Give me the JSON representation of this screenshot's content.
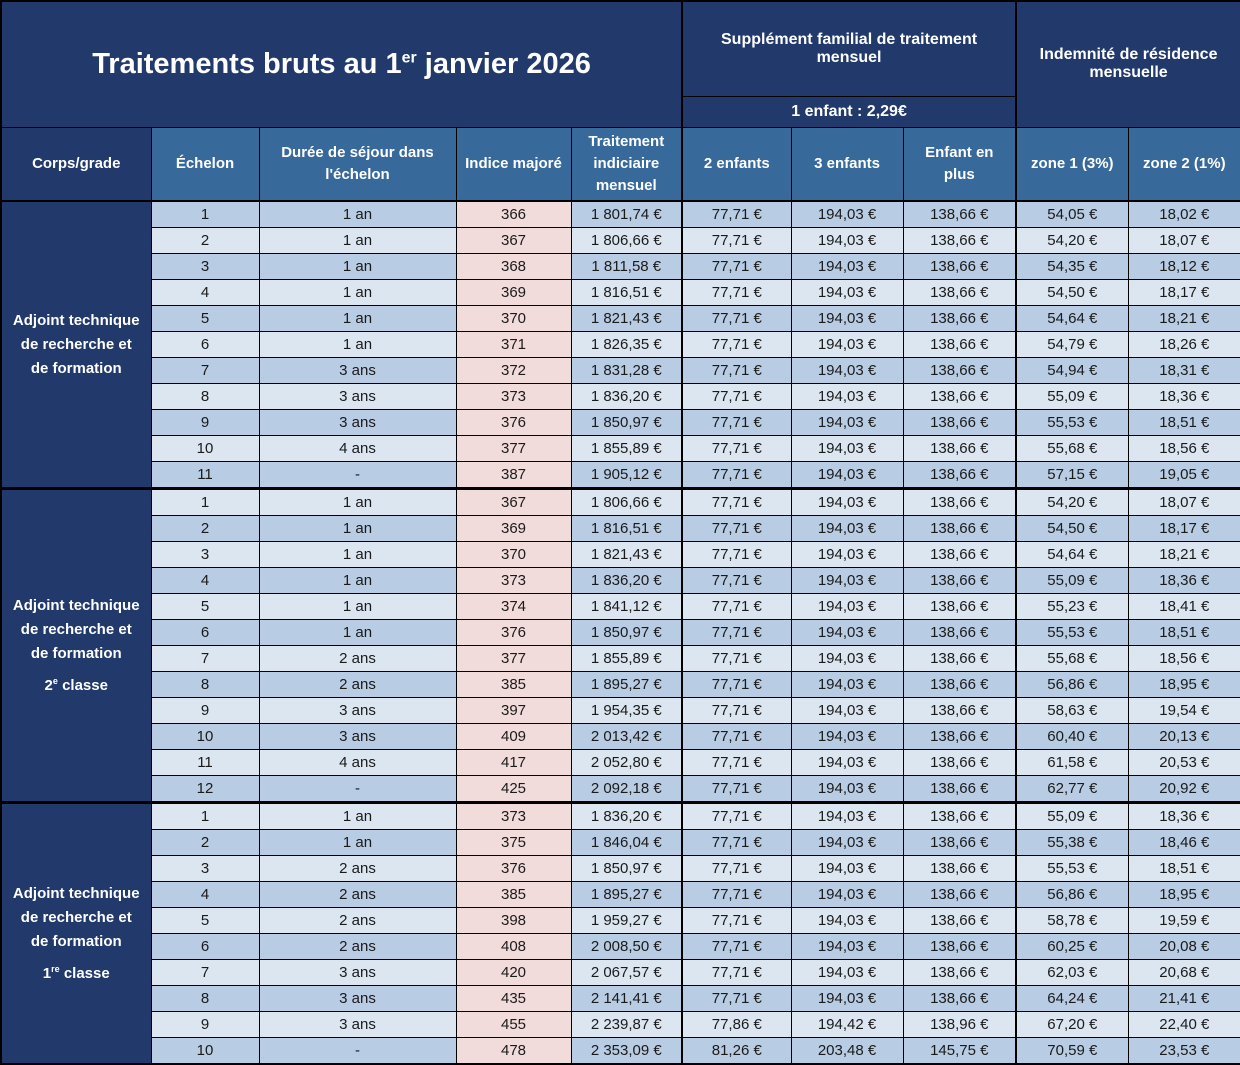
{
  "title": {
    "before": "Traitements bruts au 1",
    "sup": "er",
    "after": " janvier 2026"
  },
  "banners": {
    "supplement": {
      "title": "Supplément familial de traitement mensuel",
      "subtitle": "1 enfant : 2,29€"
    },
    "indemnite": {
      "title": "Indemnité de résidence mensuelle"
    }
  },
  "columns": [
    "Corps/grade",
    "Échelon",
    "Durée de séjour dans l'échelon",
    "Indice majoré",
    "Traitement indiciaire mensuel",
    "2 enfants",
    "3 enfants",
    "Enfant en plus",
    "zone 1 (3%)",
    "zone 2 (1%)"
  ],
  "colors": {
    "navy": "#21396B",
    "steel": "#38699B",
    "stripe_dark": "#B8CCE4",
    "stripe_light": "#DCE6F1",
    "pink": "#F2DCDB",
    "border": "#000000",
    "text_dark": "#1A1A1A",
    "text_light": "#FFFFFF"
  },
  "groups": [
    {
      "label": {
        "name": "Adjoint technique de recherche et de formation"
      },
      "rows": [
        {
          "echelon": "1",
          "duree": "1 an",
          "indice": "366",
          "traitement": "1 801,74 €",
          "e2": "77,71 €",
          "e3": "194,03 €",
          "plus": "138,66 €",
          "z1": "54,05 €",
          "z2": "18,02 €"
        },
        {
          "echelon": "2",
          "duree": "1 an",
          "indice": "367",
          "traitement": "1 806,66 €",
          "e2": "77,71 €",
          "e3": "194,03 €",
          "plus": "138,66 €",
          "z1": "54,20 €",
          "z2": "18,07 €"
        },
        {
          "echelon": "3",
          "duree": "1 an",
          "indice": "368",
          "traitement": "1 811,58 €",
          "e2": "77,71 €",
          "e3": "194,03 €",
          "plus": "138,66 €",
          "z1": "54,35 €",
          "z2": "18,12 €"
        },
        {
          "echelon": "4",
          "duree": "1 an",
          "indice": "369",
          "traitement": "1 816,51 €",
          "e2": "77,71 €",
          "e3": "194,03 €",
          "plus": "138,66 €",
          "z1": "54,50 €",
          "z2": "18,17 €"
        },
        {
          "echelon": "5",
          "duree": "1 an",
          "indice": "370",
          "traitement": "1 821,43 €",
          "e2": "77,71 €",
          "e3": "194,03 €",
          "plus": "138,66 €",
          "z1": "54,64 €",
          "z2": "18,21 €"
        },
        {
          "echelon": "6",
          "duree": "1 an",
          "indice": "371",
          "traitement": "1 826,35 €",
          "e2": "77,71 €",
          "e3": "194,03 €",
          "plus": "138,66 €",
          "z1": "54,79 €",
          "z2": "18,26 €"
        },
        {
          "echelon": "7",
          "duree": "3 ans",
          "indice": "372",
          "traitement": "1 831,28 €",
          "e2": "77,71 €",
          "e3": "194,03 €",
          "plus": "138,66 €",
          "z1": "54,94 €",
          "z2": "18,31 €"
        },
        {
          "echelon": "8",
          "duree": "3 ans",
          "indice": "373",
          "traitement": "1 836,20 €",
          "e2": "77,71 €",
          "e3": "194,03 €",
          "plus": "138,66 €",
          "z1": "55,09 €",
          "z2": "18,36 €"
        },
        {
          "echelon": "9",
          "duree": "3 ans",
          "indice": "376",
          "traitement": "1 850,97 €",
          "e2": "77,71 €",
          "e3": "194,03 €",
          "plus": "138,66 €",
          "z1": "55,53 €",
          "z2": "18,51 €"
        },
        {
          "echelon": "10",
          "duree": "4 ans",
          "indice": "377",
          "traitement": "1 855,89 €",
          "e2": "77,71 €",
          "e3": "194,03 €",
          "plus": "138,66 €",
          "z1": "55,68 €",
          "z2": "18,56 €"
        },
        {
          "echelon": "11",
          "duree": "-",
          "indice": "387",
          "traitement": "1 905,12 €",
          "e2": "77,71 €",
          "e3": "194,03 €",
          "plus": "138,66 €",
          "z1": "57,15 €",
          "z2": "19,05 €"
        }
      ]
    },
    {
      "label": {
        "name": "Adjoint technique de recherche et de formation",
        "classe_num": "2",
        "classe_sup": "e",
        "classe_word": " classe"
      },
      "rows": [
        {
          "echelon": "1",
          "duree": "1 an",
          "indice": "367",
          "traitement": "1 806,66 €",
          "e2": "77,71 €",
          "e3": "194,03 €",
          "plus": "138,66 €",
          "z1": "54,20 €",
          "z2": "18,07 €"
        },
        {
          "echelon": "2",
          "duree": "1 an",
          "indice": "369",
          "traitement": "1 816,51 €",
          "e2": "77,71 €",
          "e3": "194,03 €",
          "plus": "138,66 €",
          "z1": "54,50 €",
          "z2": "18,17 €"
        },
        {
          "echelon": "3",
          "duree": "1 an",
          "indice": "370",
          "traitement": "1 821,43 €",
          "e2": "77,71 €",
          "e3": "194,03 €",
          "plus": "138,66 €",
          "z1": "54,64 €",
          "z2": "18,21 €"
        },
        {
          "echelon": "4",
          "duree": "1 an",
          "indice": "373",
          "traitement": "1 836,20 €",
          "e2": "77,71 €",
          "e3": "194,03 €",
          "plus": "138,66 €",
          "z1": "55,09 €",
          "z2": "18,36 €"
        },
        {
          "echelon": "5",
          "duree": "1 an",
          "indice": "374",
          "traitement": "1 841,12 €",
          "e2": "77,71 €",
          "e3": "194,03 €",
          "plus": "138,66 €",
          "z1": "55,23 €",
          "z2": "18,41 €"
        },
        {
          "echelon": "6",
          "duree": "1 an",
          "indice": "376",
          "traitement": "1 850,97 €",
          "e2": "77,71 €",
          "e3": "194,03 €",
          "plus": "138,66 €",
          "z1": "55,53 €",
          "z2": "18,51 €"
        },
        {
          "echelon": "7",
          "duree": "2 ans",
          "indice": "377",
          "traitement": "1 855,89 €",
          "e2": "77,71 €",
          "e3": "194,03 €",
          "plus": "138,66 €",
          "z1": "55,68 €",
          "z2": "18,56 €"
        },
        {
          "echelon": "8",
          "duree": "2 ans",
          "indice": "385",
          "traitement": "1 895,27 €",
          "e2": "77,71 €",
          "e3": "194,03 €",
          "plus": "138,66 €",
          "z1": "56,86 €",
          "z2": "18,95 €"
        },
        {
          "echelon": "9",
          "duree": "3 ans",
          "indice": "397",
          "traitement": "1 954,35 €",
          "e2": "77,71 €",
          "e3": "194,03 €",
          "plus": "138,66 €",
          "z1": "58,63 €",
          "z2": "19,54 €"
        },
        {
          "echelon": "10",
          "duree": "3 ans",
          "indice": "409",
          "traitement": "2 013,42 €",
          "e2": "77,71 €",
          "e3": "194,03 €",
          "plus": "138,66 €",
          "z1": "60,40 €",
          "z2": "20,13 €"
        },
        {
          "echelon": "11",
          "duree": "4 ans",
          "indice": "417",
          "traitement": "2 052,80 €",
          "e2": "77,71 €",
          "e3": "194,03 €",
          "plus": "138,66 €",
          "z1": "61,58 €",
          "z2": "20,53 €"
        },
        {
          "echelon": "12",
          "duree": "-",
          "indice": "425",
          "traitement": "2 092,18 €",
          "e2": "77,71 €",
          "e3": "194,03 €",
          "plus": "138,66 €",
          "z1": "62,77 €",
          "z2": "20,92 €"
        }
      ]
    },
    {
      "label": {
        "name": "Adjoint technique de recherche et de formation",
        "classe_num": "1",
        "classe_sup": "re",
        "classe_word": " classe"
      },
      "rows": [
        {
          "echelon": "1",
          "duree": "1 an",
          "indice": "373",
          "traitement": "1 836,20 €",
          "e2": "77,71 €",
          "e3": "194,03 €",
          "plus": "138,66 €",
          "z1": "55,09 €",
          "z2": "18,36 €"
        },
        {
          "echelon": "2",
          "duree": "1 an",
          "indice": "375",
          "traitement": "1 846,04 €",
          "e2": "77,71 €",
          "e3": "194,03 €",
          "plus": "138,66 €",
          "z1": "55,38 €",
          "z2": "18,46 €"
        },
        {
          "echelon": "3",
          "duree": "2 ans",
          "indice": "376",
          "traitement": "1 850,97 €",
          "e2": "77,71 €",
          "e3": "194,03 €",
          "plus": "138,66 €",
          "z1": "55,53 €",
          "z2": "18,51 €"
        },
        {
          "echelon": "4",
          "duree": "2 ans",
          "indice": "385",
          "traitement": "1 895,27 €",
          "e2": "77,71 €",
          "e3": "194,03 €",
          "plus": "138,66 €",
          "z1": "56,86 €",
          "z2": "18,95 €"
        },
        {
          "echelon": "5",
          "duree": "2 ans",
          "indice": "398",
          "traitement": "1 959,27 €",
          "e2": "77,71 €",
          "e3": "194,03 €",
          "plus": "138,66 €",
          "z1": "58,78 €",
          "z2": "19,59 €"
        },
        {
          "echelon": "6",
          "duree": "2 ans",
          "indice": "408",
          "traitement": "2 008,50 €",
          "e2": "77,71 €",
          "e3": "194,03 €",
          "plus": "138,66 €",
          "z1": "60,25 €",
          "z2": "20,08 €"
        },
        {
          "echelon": "7",
          "duree": "3 ans",
          "indice": "420",
          "traitement": "2 067,57 €",
          "e2": "77,71 €",
          "e3": "194,03 €",
          "plus": "138,66 €",
          "z1": "62,03 €",
          "z2": "20,68 €"
        },
        {
          "echelon": "8",
          "duree": "3 ans",
          "indice": "435",
          "traitement": "2 141,41 €",
          "e2": "77,71 €",
          "e3": "194,03 €",
          "plus": "138,66 €",
          "z1": "64,24 €",
          "z2": "21,41 €"
        },
        {
          "echelon": "9",
          "duree": "3 ans",
          "indice": "455",
          "traitement": "2 239,87 €",
          "e2": "77,86 €",
          "e3": "194,42 €",
          "plus": "138,96 €",
          "z1": "67,20 €",
          "z2": "22,40 €"
        },
        {
          "echelon": "10",
          "duree": "-",
          "indice": "478",
          "traitement": "2 353,09 €",
          "e2": "81,26 €",
          "e3": "203,48 €",
          "plus": "145,75 €",
          "z1": "70,59 €",
          "z2": "23,53 €"
        }
      ]
    }
  ]
}
